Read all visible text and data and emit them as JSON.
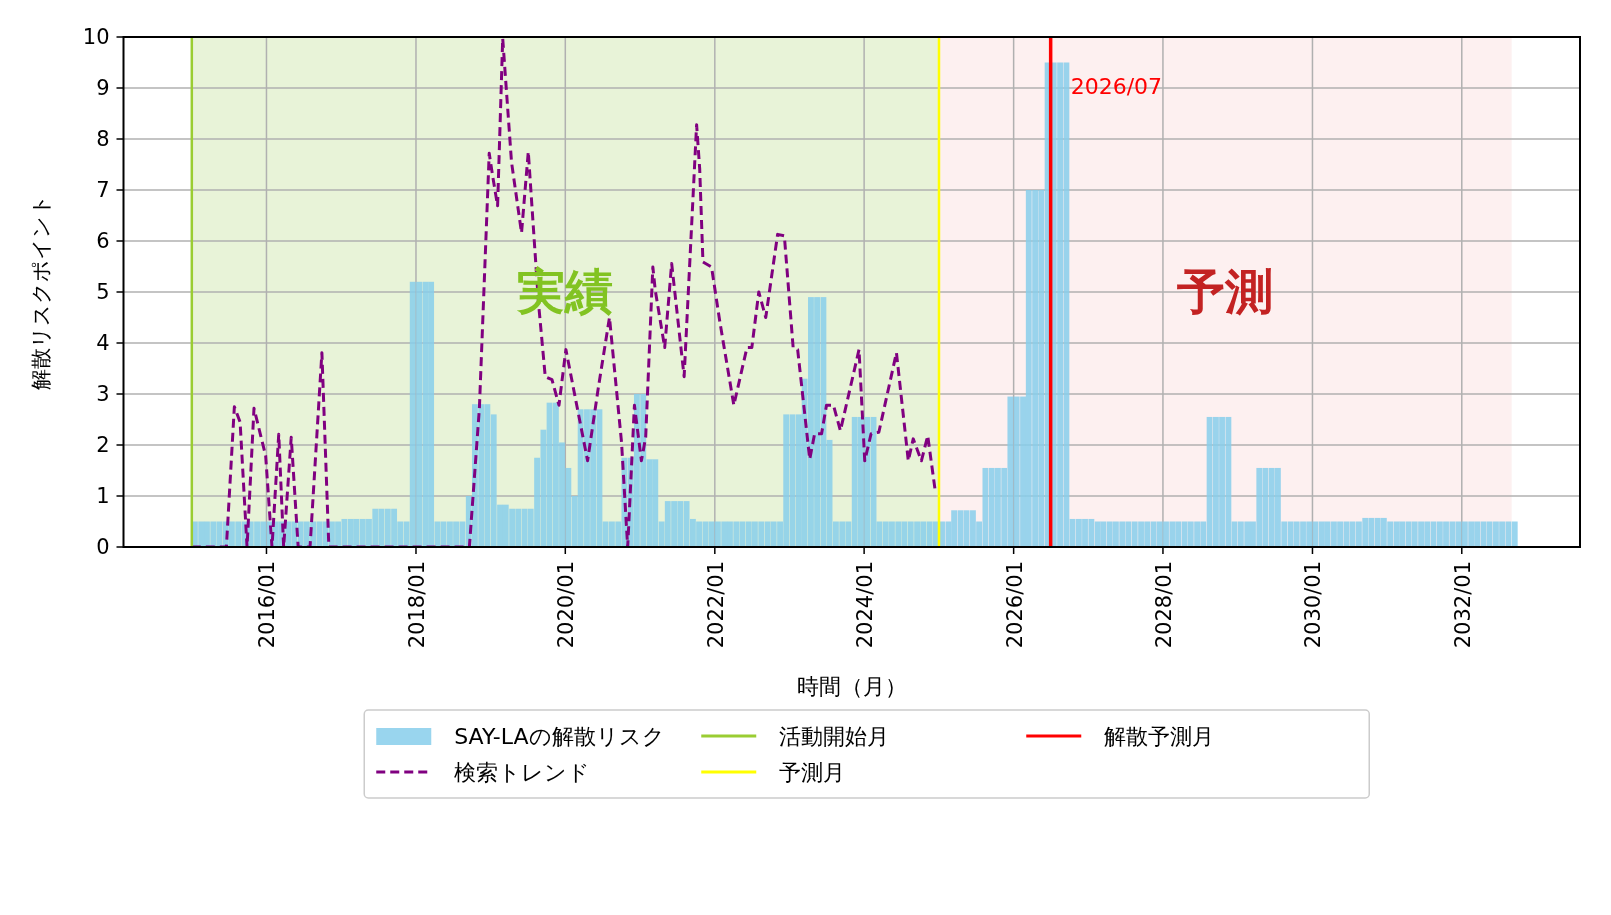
{
  "chart_data": {
    "type": "bar",
    "xlabel": "時間（月）",
    "ylabel": "解散リスクポイント",
    "xlim": [
      "2014-02",
      "2033-08"
    ],
    "ylim": [
      0,
      10
    ],
    "yticks": [
      0,
      1,
      2,
      3,
      4,
      5,
      6,
      7,
      8,
      9,
      10
    ],
    "xticks": [
      {
        "value": "2016-01",
        "label": "2016/01"
      },
      {
        "value": "2018-01",
        "label": "2018/01"
      },
      {
        "value": "2020-01",
        "label": "2020/01"
      },
      {
        "value": "2022-01",
        "label": "2022/01"
      },
      {
        "value": "2024-01",
        "label": "2024/01"
      },
      {
        "value": "2026-01",
        "label": "2026/01"
      },
      {
        "value": "2028-01",
        "label": "2028/01"
      },
      {
        "value": "2030-01",
        "label": "2030/01"
      },
      {
        "value": "2032-01",
        "label": "2032/01"
      }
    ],
    "grid": true,
    "legend": "bottom",
    "series": [
      {
        "name": "SAY-LAの解散リスク",
        "color": "#87ceeb",
        "x": [
          "2015-01",
          "2015-02",
          "2015-03",
          "2015-04",
          "2015-05",
          "2015-06",
          "2015-07",
          "2015-08",
          "2015-09",
          "2015-10",
          "2015-11",
          "2015-12",
          "2016-01",
          "2016-02",
          "2016-03",
          "2016-04",
          "2016-05",
          "2016-06",
          "2016-07",
          "2016-08",
          "2016-09",
          "2016-10",
          "2016-11",
          "2016-12",
          "2017-01",
          "2017-02",
          "2017-03",
          "2017-04",
          "2017-05",
          "2017-06",
          "2017-07",
          "2017-08",
          "2017-09",
          "2017-10",
          "2017-11",
          "2017-12",
          "2018-01",
          "2018-02",
          "2018-03",
          "2018-04",
          "2018-05",
          "2018-06",
          "2018-07",
          "2018-08",
          "2018-09",
          "2018-10",
          "2018-11",
          "2018-12",
          "2019-01",
          "2019-02",
          "2019-03",
          "2019-04",
          "2019-05",
          "2019-06",
          "2019-07",
          "2019-08",
          "2019-09",
          "2019-10",
          "2019-11",
          "2019-12",
          "2020-01",
          "2020-02",
          "2020-03",
          "2020-04",
          "2020-05",
          "2020-06",
          "2020-07",
          "2020-08",
          "2020-09",
          "2020-10",
          "2020-11",
          "2020-12",
          "2021-01",
          "2021-02",
          "2021-03",
          "2021-04",
          "2021-05",
          "2021-06",
          "2021-07",
          "2021-08",
          "2021-09",
          "2021-10",
          "2021-11",
          "2021-12",
          "2022-01",
          "2022-02",
          "2022-03",
          "2022-04",
          "2022-05",
          "2022-06",
          "2022-07",
          "2022-08",
          "2022-09",
          "2022-10",
          "2022-11",
          "2022-12",
          "2023-01",
          "2023-02",
          "2023-03",
          "2023-04",
          "2023-05",
          "2023-06",
          "2023-07",
          "2023-08",
          "2023-09",
          "2023-10",
          "2023-11",
          "2023-12",
          "2024-01",
          "2024-02",
          "2024-03",
          "2024-04",
          "2024-05",
          "2024-06",
          "2024-07",
          "2024-08",
          "2024-09",
          "2024-10",
          "2024-11",
          "2024-12",
          "2025-01",
          "2025-02",
          "2025-03",
          "2025-04",
          "2025-05",
          "2025-06",
          "2025-07",
          "2025-08",
          "2025-09",
          "2025-10",
          "2025-11",
          "2025-12",
          "2026-01",
          "2026-02",
          "2026-03",
          "2026-04",
          "2026-05",
          "2026-06",
          "2026-07",
          "2026-08",
          "2026-09",
          "2026-10",
          "2026-11",
          "2026-12",
          "2027-01",
          "2027-02",
          "2027-03",
          "2027-04",
          "2027-05",
          "2027-06",
          "2027-07",
          "2027-08",
          "2027-09",
          "2027-10",
          "2027-11",
          "2027-12",
          "2028-01",
          "2028-02",
          "2028-03",
          "2028-04",
          "2028-05",
          "2028-06",
          "2028-07",
          "2028-08",
          "2028-09",
          "2028-10",
          "2028-11",
          "2028-12",
          "2029-01",
          "2029-02",
          "2029-03",
          "2029-04",
          "2029-05",
          "2029-06",
          "2029-07",
          "2029-08",
          "2029-09",
          "2029-10",
          "2029-11",
          "2029-12",
          "2030-01",
          "2030-02",
          "2030-03",
          "2030-04",
          "2030-05",
          "2030-06",
          "2030-07",
          "2030-08",
          "2030-09",
          "2030-10",
          "2030-11",
          "2030-12",
          "2031-01",
          "2031-02",
          "2031-03",
          "2031-04",
          "2031-05",
          "2031-06",
          "2031-07",
          "2031-08",
          "2031-09",
          "2031-10",
          "2031-11",
          "2031-12",
          "2032-01",
          "2032-02",
          "2032-03",
          "2032-04",
          "2032-05",
          "2032-06",
          "2032-07",
          "2032-08",
          "2032-09"
        ],
        "values": [
          0.5,
          0.5,
          0.5,
          0.5,
          0.5,
          0.5,
          0.5,
          0.5,
          0.5,
          0.5,
          0.5,
          0.5,
          0.5,
          0.5,
          0.5,
          0.5,
          0.5,
          0.5,
          0.5,
          0.5,
          0.5,
          0.5,
          0.5,
          0.5,
          0.55,
          0.55,
          0.55,
          0.55,
          0.55,
          0.75,
          0.75,
          0.75,
          0.75,
          0.5,
          0.5,
          5.2,
          5.2,
          5.2,
          5.2,
          0.5,
          0.5,
          0.5,
          0.5,
          0.5,
          1.0,
          2.8,
          2.8,
          2.8,
          2.6,
          0.83,
          0.83,
          0.75,
          0.75,
          0.75,
          0.75,
          1.75,
          2.3,
          2.83,
          2.83,
          2.05,
          1.55,
          1.0,
          2.7,
          2.7,
          2.7,
          2.7,
          0.5,
          0.5,
          0.5,
          1.75,
          1.75,
          3.0,
          3.0,
          1.72,
          1.72,
          0.5,
          0.9,
          0.9,
          0.9,
          0.9,
          0.55,
          0.5,
          0.5,
          0.5,
          0.5,
          0.5,
          0.5,
          0.5,
          0.5,
          0.5,
          0.5,
          0.5,
          0.5,
          0.5,
          0.5,
          2.6,
          2.6,
          2.6,
          3.3,
          4.9,
          4.9,
          4.9,
          2.1,
          0.5,
          0.5,
          0.5,
          2.55,
          2.55,
          2.55,
          2.55,
          0.5,
          0.5,
          0.5,
          0.5,
          0.5,
          0.5,
          0.5,
          0.5,
          0.5,
          0.5,
          0.5,
          0.5,
          0.72,
          0.72,
          0.72,
          0.72,
          0.5,
          1.55,
          1.55,
          1.55,
          1.55,
          2.95,
          2.95,
          2.95,
          7.0,
          7.0,
          7.0,
          9.5,
          9.5,
          9.5,
          9.5,
          0.55,
          0.55,
          0.55,
          0.55,
          0.5,
          0.5,
          0.5,
          0.5,
          0.5,
          0.5,
          0.5,
          0.5,
          0.5,
          0.5,
          0.5,
          0.5,
          0.5,
          0.5,
          0.5,
          0.5,
          0.5,
          0.5,
          2.55,
          2.55,
          2.55,
          2.55,
          0.5,
          0.5,
          0.5,
          0.5,
          1.55,
          1.55,
          1.55,
          1.55,
          0.5,
          0.5,
          0.5,
          0.5,
          0.5,
          0.5,
          0.5,
          0.5,
          0.5,
          0.5,
          0.5,
          0.5,
          0.5,
          0.57,
          0.57,
          0.57,
          0.57,
          0.5,
          0.5,
          0.5,
          0.5,
          0.5,
          0.5,
          0.5,
          0.5,
          0.5,
          0.5,
          0.5,
          0.5,
          0.5,
          0.5,
          0.5,
          0.5,
          0.5,
          0.5,
          0.5,
          0.5,
          0.5
        ]
      },
      {
        "name": "検索トレンド",
        "type": "line",
        "color": "#800080",
        "line_style": "dashed",
        "marker": "none",
        "x": [
          "2015-01-01",
          "2015-06-19",
          "2015-07-28",
          "2015-08-25",
          "2015-09-28",
          "2015-11-01",
          "2015-12-04",
          "2015-12-28",
          "2016-01-28",
          "2016-03-01",
          "2016-03-25",
          "2016-05-01",
          "2016-06-04",
          "2016-08-01",
          "2016-09-28",
          "2016-11-01",
          "2018-09-19",
          "2018-11-07",
          "2018-12-25",
          "2019-01-13",
          "2019-02-04",
          "2019-03-01",
          "2019-04-13",
          "2019-06-01",
          "2019-07-04",
          "2019-08-22",
          "2019-09-25",
          "2019-10-28",
          "2019-12-01",
          "2020-01-04",
          "2020-04-19",
          "2020-06-10",
          "2020-08-04",
          "2020-10-02",
          "2020-11-01",
          "2020-12-04",
          "2021-01-07",
          "2021-01-28",
          "2021-03-04",
          "2021-03-16",
          "2021-05-01",
          "2021-06-04",
          "2021-08-04",
          "2021-10-04",
          "2021-10-19",
          "2021-11-04",
          "2021-12-16",
          "2022-01-25",
          "2022-04-04",
          "2022-06-07",
          "2022-07-01",
          "2022-08-04",
          "2022-09-07",
          "2022-11-04",
          "2022-12-07",
          "2023-01-19",
          "2023-02-10",
          "2023-04-10",
          "2023-05-04",
          "2023-06-07",
          "2023-07-01",
          "2023-08-04",
          "2023-09-07",
          "2023-12-07",
          "2024-01-04",
          "2024-02-04",
          "2024-03-13",
          "2024-06-07",
          "2024-08-04",
          "2024-08-28",
          "2024-10-07",
          "2024-11-07",
          "2024-12-13"
        ],
        "values": [
          0,
          0,
          2.75,
          2.45,
          0,
          2.72,
          2.18,
          1.79,
          0,
          2.21,
          0,
          2.15,
          0,
          0,
          3.81,
          0,
          0,
          2.72,
          7.72,
          7.22,
          6.69,
          9.97,
          7.55,
          6.16,
          7.75,
          4.83,
          3.34,
          3.28,
          2.78,
          3.87,
          1.69,
          3.11,
          4.5,
          2.05,
          0,
          2.78,
          1.69,
          2.15,
          5.49,
          5.03,
          3.91,
          5.56,
          3.34,
          8.28,
          7.42,
          5.59,
          5.49,
          4.43,
          2.78,
          3.91,
          3.91,
          5.0,
          4.5,
          6.13,
          6.1,
          3.91,
          3.87,
          1.72,
          2.22,
          2.22,
          2.78,
          2.78,
          2.28,
          3.87,
          1.69,
          2.22,
          2.25,
          3.81,
          1.69,
          2.12,
          1.69,
          2.18,
          1.12
        ]
      }
    ],
    "ref_lines": [
      {
        "axis": "x",
        "value": "2015-01",
        "label": "活動開始月",
        "color": "#9acd32"
      },
      {
        "axis": "x",
        "value": "2025-01",
        "label": "予測月",
        "color": "#ffff00"
      },
      {
        "axis": "x",
        "value": "2026-07",
        "label": "解散予測月",
        "color": "#ff0000"
      }
    ],
    "bands": [
      {
        "axis": "x",
        "from": "2015-01",
        "to": "2025-01",
        "label": "実績",
        "color": "#e8f3d8"
      },
      {
        "axis": "x",
        "from": "2025-01",
        "to": "2032-09",
        "label": "予測",
        "color": "#fdf0f0"
      }
    ],
    "annotations": [
      {
        "text": "2026/07",
        "x": "2026-07",
        "y": 9
      }
    ]
  }
}
